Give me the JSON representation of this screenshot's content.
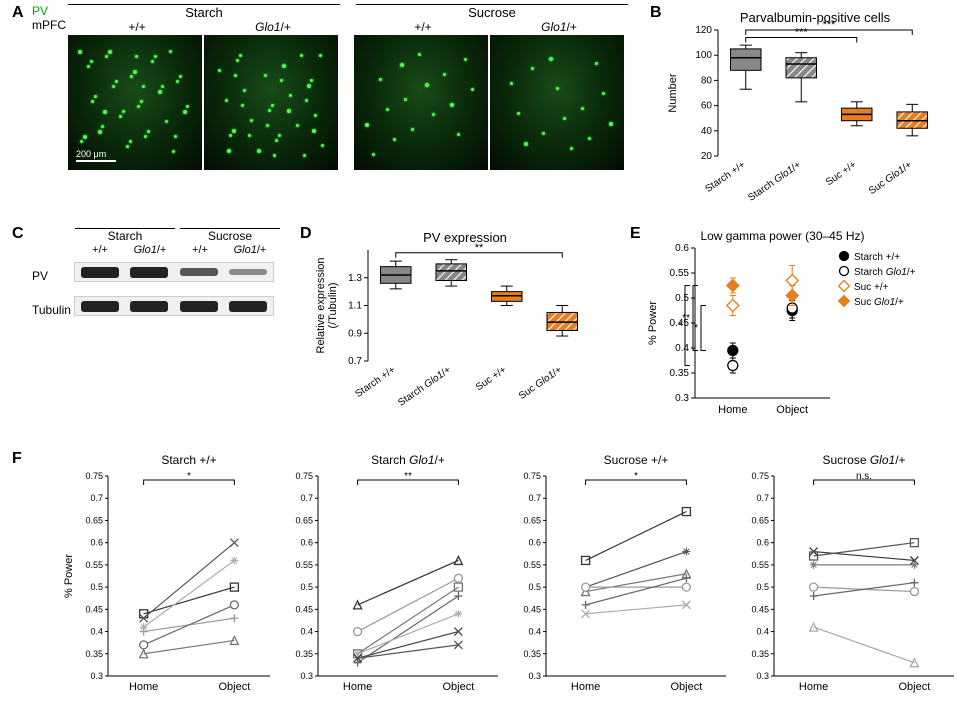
{
  "colors": {
    "gray": "#888888",
    "orange": "#e67e22",
    "black": "#000000",
    "white": "#ffffff",
    "micro_bg": "#0d2d0d",
    "pv_green": "#00aa00"
  },
  "panelA": {
    "label": "A",
    "pv": "PV",
    "mpfc": "mPFC",
    "conditions": [
      "Starch",
      "Sucrose"
    ],
    "genotypes": [
      "+/+",
      "Glo1/+",
      "+/+",
      "Glo1/+"
    ],
    "scale_text": "200 μm",
    "dot_counts": [
      38,
      34,
      16,
      14
    ]
  },
  "panelB": {
    "label": "B",
    "title": "Parvalbumin-positive cells",
    "ylabel": "Number",
    "ylim": [
      20,
      120
    ],
    "yticks": [
      20,
      40,
      60,
      80,
      100,
      120
    ],
    "xticks": [
      "Starch +/+",
      "Starch Glo1/+",
      "Suc +/+",
      "Suc Glo1/+"
    ],
    "boxes": [
      {
        "q1": 88,
        "med": 98,
        "q3": 105,
        "wlo": 73,
        "whi": 108,
        "fill": "#888888",
        "hatch": false
      },
      {
        "q1": 82,
        "med": 93,
        "q3": 98,
        "wlo": 63,
        "whi": 102,
        "fill": "#888888",
        "hatch": true
      },
      {
        "q1": 48,
        "med": 53,
        "q3": 58,
        "wlo": 44,
        "whi": 63,
        "fill": "#e67e22",
        "hatch": false
      },
      {
        "q1": 42,
        "med": 48,
        "q3": 55,
        "wlo": 36,
        "whi": 61,
        "fill": "#e67e22",
        "hatch": true
      }
    ],
    "sig": [
      {
        "from": 0,
        "to": 2,
        "y": 114,
        "label": "***"
      },
      {
        "from": 0,
        "to": 3,
        "y": 120,
        "label": "***"
      }
    ]
  },
  "panelC": {
    "label": "C",
    "conditions": [
      "Starch",
      "Sucrose"
    ],
    "genotypes": [
      "+/+",
      "Glo1/+",
      "+/+",
      "Glo1/+"
    ],
    "rows": [
      "PV",
      "Tubulin"
    ],
    "intensities": {
      "PV": [
        "strong",
        "strong",
        "normal",
        "weak"
      ],
      "Tubulin": [
        "strong",
        "strong",
        "strong",
        "strong"
      ]
    }
  },
  "panelD": {
    "label": "D",
    "title": "PV expression",
    "ylabel": "Relative expression\n(/Tubulin)",
    "ylim": [
      0.7,
      1.5
    ],
    "yticks": [
      0.7,
      0.9,
      1.1,
      1.3
    ],
    "xticks": [
      "Starch +/+",
      "Starch Glo1/+",
      "Suc +/+",
      "Suc Glo1/+"
    ],
    "boxes": [
      {
        "q1": 1.26,
        "med": 1.32,
        "q3": 1.38,
        "wlo": 1.22,
        "whi": 1.42,
        "fill": "#888888",
        "hatch": false
      },
      {
        "q1": 1.28,
        "med": 1.35,
        "q3": 1.4,
        "wlo": 1.24,
        "whi": 1.43,
        "fill": "#888888",
        "hatch": true
      },
      {
        "q1": 1.13,
        "med": 1.17,
        "q3": 1.2,
        "wlo": 1.1,
        "whi": 1.24,
        "fill": "#e67e22",
        "hatch": false
      },
      {
        "q1": 0.92,
        "med": 0.98,
        "q3": 1.05,
        "wlo": 0.88,
        "whi": 1.1,
        "fill": "#e67e22",
        "hatch": true
      }
    ],
    "sig": [
      {
        "from": 0,
        "to": 3,
        "y": 1.48,
        "label": "**"
      }
    ]
  },
  "panelE": {
    "label": "E",
    "title": "Low gamma power (30–45 Hz)",
    "ylabel": "% Power",
    "ylim": [
      0.3,
      0.6
    ],
    "yticks": [
      0.3,
      0.35,
      0.4,
      0.45,
      0.5,
      0.55,
      0.6
    ],
    "xticks": [
      "Home",
      "Object"
    ],
    "legend": [
      "Starch +/+",
      "Starch Glo1/+",
      "Suc +/+",
      "Suc Glo1/+"
    ],
    "series": [
      {
        "name": "Starch +/+",
        "marker": "filled-circle",
        "color": "#000000",
        "points": [
          {
            "x": 0,
            "y": 0.395,
            "err": 0.015
          },
          {
            "x": 1,
            "y": 0.475,
            "err": 0.02
          }
        ]
      },
      {
        "name": "Starch Glo1/+",
        "marker": "open-circle",
        "color": "#000000",
        "points": [
          {
            "x": 0,
            "y": 0.365,
            "err": 0.015
          },
          {
            "x": 1,
            "y": 0.48,
            "err": 0.02
          }
        ]
      },
      {
        "name": "Suc +/+",
        "marker": "open-diamond",
        "color": "#e67e22",
        "points": [
          {
            "x": 0,
            "y": 0.485,
            "err": 0.02
          },
          {
            "x": 1,
            "y": 0.535,
            "err": 0.03
          }
        ]
      },
      {
        "name": "Suc Glo1/+",
        "marker": "filled-diamond",
        "color": "#e67e22",
        "points": [
          {
            "x": 0,
            "y": 0.525,
            "err": 0.015
          },
          {
            "x": 1,
            "y": 0.505,
            "err": 0.02
          }
        ]
      }
    ],
    "sig": [
      {
        "pair": [
          0,
          2
        ],
        "label": "*"
      },
      {
        "pair": [
          0,
          3
        ],
        "label": "**"
      },
      {
        "pair": [
          1,
          3
        ],
        "label": "*"
      }
    ]
  },
  "panelF": {
    "label": "F",
    "ylabel": "% Power",
    "ylim": [
      0.3,
      0.75
    ],
    "yticks": [
      0.3,
      0.35,
      0.4,
      0.45,
      0.5,
      0.55,
      0.6,
      0.65,
      0.7,
      0.75
    ],
    "xticks": [
      "Home",
      "Object"
    ],
    "subplots": [
      {
        "title": "Starch +/+",
        "sig": "*",
        "lines": [
          {
            "m": "sq",
            "h": 0.44,
            "o": 0.5
          },
          {
            "m": "x",
            "h": 0.43,
            "o": 0.6
          },
          {
            "m": "tri",
            "h": 0.35,
            "o": 0.38
          },
          {
            "m": "plus",
            "h": 0.4,
            "o": 0.43
          },
          {
            "m": "circ",
            "h": 0.37,
            "o": 0.46
          },
          {
            "m": "star",
            "h": 0.41,
            "o": 0.56
          }
        ]
      },
      {
        "title": "Starch Glo1/+",
        "sig": "**",
        "lines": [
          {
            "m": "tri",
            "h": 0.46,
            "o": 0.56
          },
          {
            "m": "x",
            "h": 0.34,
            "o": 0.37
          },
          {
            "m": "sq",
            "h": 0.35,
            "o": 0.5
          },
          {
            "m": "circ",
            "h": 0.4,
            "o": 0.52
          },
          {
            "m": "plus",
            "h": 0.33,
            "o": 0.48
          },
          {
            "m": "star",
            "h": 0.35,
            "o": 0.44
          },
          {
            "m": "x",
            "h": 0.34,
            "o": 0.4
          }
        ]
      },
      {
        "title": "Sucrose +/+",
        "sig": "*",
        "lines": [
          {
            "m": "sq",
            "h": 0.56,
            "o": 0.67
          },
          {
            "m": "star",
            "h": 0.5,
            "o": 0.58
          },
          {
            "m": "tri",
            "h": 0.49,
            "o": 0.53
          },
          {
            "m": "circ",
            "h": 0.5,
            "o": 0.5
          },
          {
            "m": "plus",
            "h": 0.46,
            "o": 0.52
          },
          {
            "m": "x",
            "h": 0.44,
            "o": 0.46
          }
        ]
      },
      {
        "title": "Sucrose Glo1/+",
        "sig": "n.s.",
        "lines": [
          {
            "m": "x",
            "h": 0.58,
            "o": 0.56
          },
          {
            "m": "sq",
            "h": 0.57,
            "o": 0.6
          },
          {
            "m": "star",
            "h": 0.55,
            "o": 0.55
          },
          {
            "m": "circ",
            "h": 0.5,
            "o": 0.49
          },
          {
            "m": "plus",
            "h": 0.48,
            "o": 0.51
          },
          {
            "m": "tri",
            "h": 0.41,
            "o": 0.33
          }
        ]
      }
    ]
  }
}
